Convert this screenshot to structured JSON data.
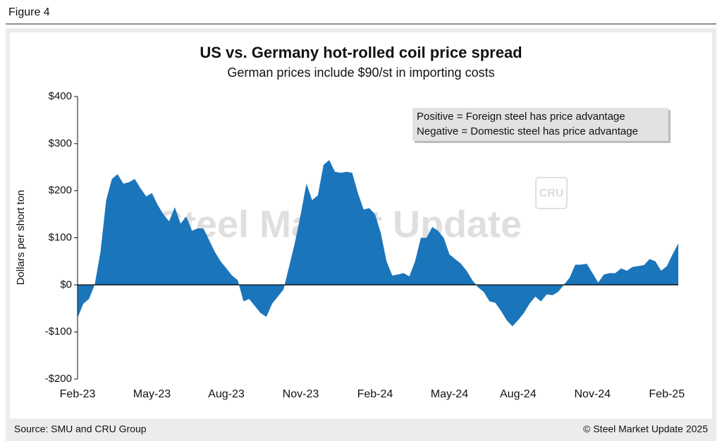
{
  "figure_label": "Figure 4",
  "chart_data": {
    "type": "area",
    "title": "US vs. Germany hot-rolled coil price spread",
    "subtitle": "German prices include $90/st in importing costs",
    "y_label": "Dollars per short ton",
    "annotations": [
      "Positive = Foreign steel has price advantage",
      "Negative = Domestic steel has price advantage"
    ],
    "watermark": [
      "Steel Market Update",
      "CRU"
    ],
    "categories": [
      "Feb-23",
      null,
      null,
      null,
      null,
      null,
      null,
      null,
      null,
      null,
      null,
      null,
      null,
      "May-23",
      null,
      null,
      null,
      null,
      null,
      null,
      null,
      null,
      null,
      null,
      null,
      null,
      "Aug-23",
      null,
      null,
      null,
      null,
      null,
      null,
      null,
      null,
      null,
      null,
      null,
      null,
      "Nov-23",
      null,
      null,
      null,
      null,
      null,
      null,
      null,
      null,
      null,
      null,
      null,
      null,
      "Feb-24",
      null,
      null,
      null,
      null,
      null,
      null,
      null,
      null,
      null,
      null,
      null,
      null,
      "May-24",
      null,
      null,
      null,
      null,
      null,
      null,
      null,
      null,
      null,
      null,
      null,
      "Aug-24",
      null,
      null,
      null,
      null,
      null,
      null,
      null,
      null,
      null,
      null,
      null,
      null,
      "Nov-24",
      null,
      null,
      null,
      null,
      null,
      null,
      null,
      null,
      null,
      null,
      null,
      null,
      "Feb-25",
      null,
      null
    ],
    "series": [
      {
        "name": "Price spread",
        "color": "#1b75bb",
        "values": [
          -70,
          -40,
          -30,
          0,
          70,
          180,
          225,
          235,
          215,
          218,
          225,
          205,
          188,
          195,
          170,
          150,
          135,
          165,
          130,
          145,
          115,
          120,
          120,
          95,
          70,
          50,
          35,
          20,
          10,
          -35,
          -30,
          -45,
          -60,
          -68,
          -40,
          -25,
          -10,
          40,
          90,
          150,
          215,
          180,
          190,
          255,
          265,
          240,
          238,
          240,
          238,
          195,
          160,
          163,
          150,
          110,
          50,
          20,
          22,
          25,
          18,
          50,
          100,
          100,
          123,
          115,
          100,
          65,
          55,
          45,
          30,
          10,
          -5,
          -15,
          -35,
          -38,
          -55,
          -75,
          -88,
          -75,
          -60,
          -40,
          -25,
          -35,
          -20,
          -22,
          -15,
          0,
          15,
          43,
          43,
          45,
          25,
          5,
          22,
          25,
          25,
          35,
          30,
          38,
          40,
          42,
          55,
          50,
          30,
          40,
          65,
          88
        ]
      }
    ],
    "ylim": [
      -200,
      400
    ],
    "yticks": [
      {
        "value": -200,
        "label": "-$200"
      },
      {
        "value": -100,
        "label": "-$100"
      },
      {
        "value": 0,
        "label": "$0"
      },
      {
        "value": 100,
        "label": "$100"
      },
      {
        "value": 200,
        "label": "$200"
      },
      {
        "value": 300,
        "label": "$300"
      },
      {
        "value": 400,
        "label": "$400"
      }
    ]
  },
  "footer": {
    "source": "Source: SMU and CRU Group",
    "copyright": "© Steel Market Update 2025"
  }
}
